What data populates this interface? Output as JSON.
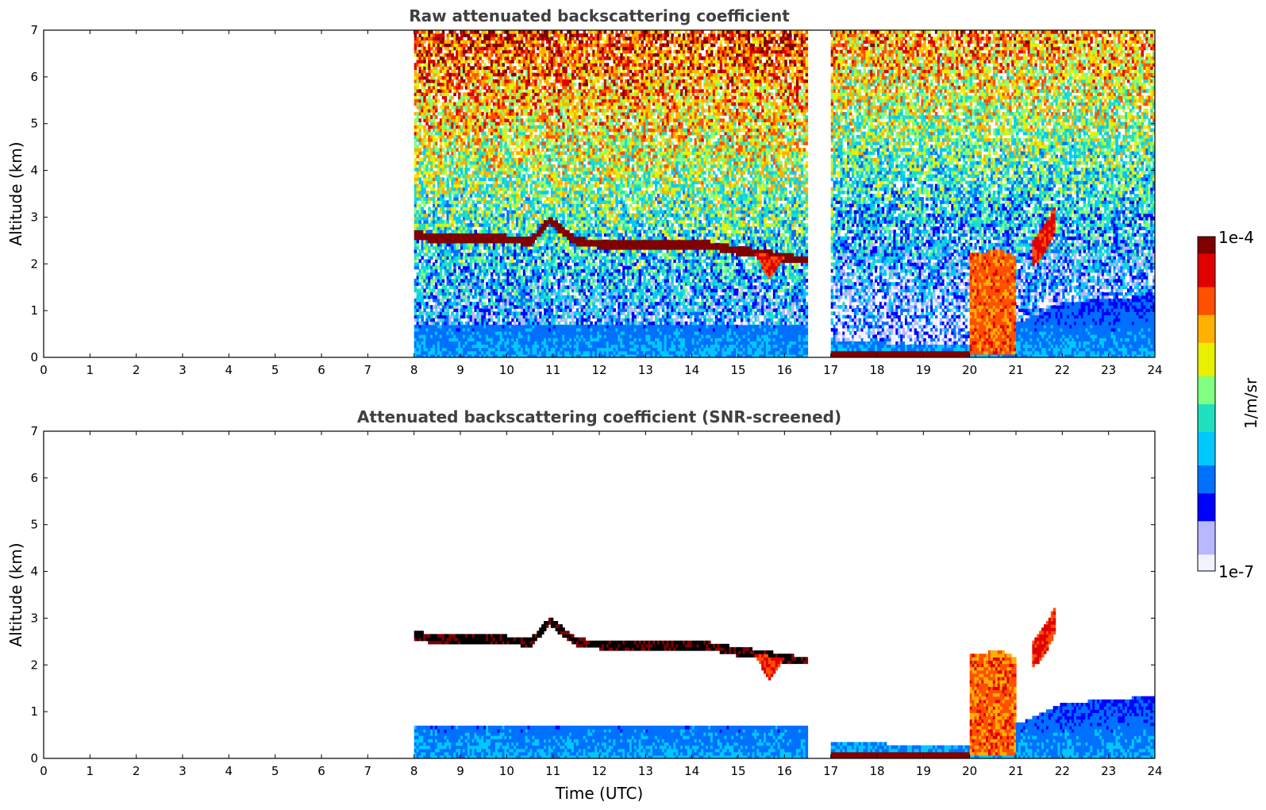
{
  "figure": {
    "colormap": [
      "#f2f2ff",
      "#b8b8ff",
      "#0000ff",
      "#0070ff",
      "#00c8ff",
      "#20e0c0",
      "#80ff80",
      "#e8f000",
      "#ffb000",
      "#ff5000",
      "#e00000",
      "#800000"
    ],
    "background": "#ffffff"
  },
  "colorbar": {
    "max_label": "1e-4",
    "min_label": "1e-7",
    "unit_label": "1/m/sr",
    "scale": "log",
    "range": [
      1e-07,
      0.0001
    ]
  },
  "chart_data": [
    {
      "type": "heatmap",
      "title": "Raw attenuated backscattering coefficient",
      "xlabel": "",
      "ylabel": "Altitude (km)",
      "xlim": [
        0,
        24
      ],
      "ylim": [
        0,
        7
      ],
      "xticks": [
        "0",
        "1",
        "2",
        "3",
        "4",
        "5",
        "6",
        "7",
        "8",
        "9",
        "10",
        "11",
        "12",
        "13",
        "14",
        "15",
        "16",
        "17",
        "18",
        "19",
        "20",
        "21",
        "22",
        "23",
        "24"
      ],
      "yticks": [
        "0",
        "1",
        "2",
        "3",
        "4",
        "5",
        "6",
        "7"
      ],
      "data_segments": [
        [
          8.0,
          16.5
        ],
        [
          17.0,
          24.0
        ]
      ],
      "cloud_layer_top_km": [
        [
          8.0,
          2.6
        ],
        [
          8.5,
          2.5
        ],
        [
          9.0,
          2.5
        ],
        [
          9.5,
          2.5
        ],
        [
          10.0,
          2.5
        ],
        [
          10.5,
          2.45
        ],
        [
          10.9,
          2.9
        ],
        [
          11.5,
          2.45
        ],
        [
          12.0,
          2.4
        ],
        [
          13.0,
          2.4
        ],
        [
          14.0,
          2.4
        ],
        [
          14.5,
          2.35
        ],
        [
          15.0,
          2.25
        ],
        [
          15.5,
          2.2
        ],
        [
          16.0,
          2.1
        ],
        [
          16.5,
          2.05
        ]
      ],
      "convective_cloud_tops_km": [
        [
          20.2,
          2.2
        ],
        [
          20.6,
          2.3
        ],
        [
          21.0,
          2.1
        ],
        [
          21.6,
          2.8
        ],
        [
          21.8,
          3.2
        ]
      ]
    },
    {
      "type": "heatmap",
      "title": "Attenuated backscattering coefficient (SNR-screened)",
      "xlabel": "Time (UTC)",
      "ylabel": "Altitude (km)",
      "xlim": [
        0,
        24
      ],
      "ylim": [
        0,
        7
      ],
      "xticks": [
        "0",
        "1",
        "2",
        "3",
        "4",
        "5",
        "6",
        "7",
        "8",
        "9",
        "10",
        "11",
        "12",
        "13",
        "14",
        "15",
        "16",
        "17",
        "18",
        "19",
        "20",
        "21",
        "22",
        "23",
        "24"
      ],
      "yticks": [
        "0",
        "1",
        "2",
        "3",
        "4",
        "5",
        "6",
        "7"
      ],
      "data_segments": [
        [
          8.0,
          16.5
        ],
        [
          17.0,
          24.0
        ]
      ],
      "boundary_layer_top_km": [
        [
          8.0,
          0.7
        ],
        [
          16.5,
          0.65
        ],
        [
          17.0,
          0.3
        ],
        [
          20.0,
          0.25
        ],
        [
          22.0,
          1.15
        ],
        [
          24.0,
          1.3
        ]
      ]
    }
  ]
}
